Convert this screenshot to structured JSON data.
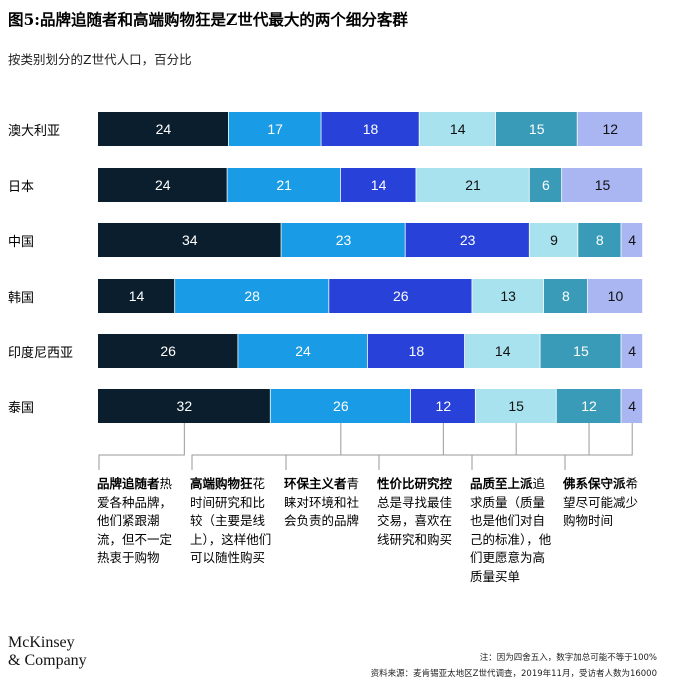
{
  "title": "图5:品牌追随者和高端购物狂是Z世代最大的两个细分客群",
  "subtitle": "按类别划分的Z世代人口，百分比",
  "chart_data": {
    "type": "bar",
    "orientation": "horizontal",
    "stacked": true,
    "categories": [
      "澳大利亚",
      "日本",
      "中国",
      "韩国",
      "印度尼西亚",
      "泰国"
    ],
    "series": [
      {
        "name": "品牌追随者",
        "color": "#0b1e2d",
        "values": [
          24,
          24,
          34,
          14,
          26,
          32
        ]
      },
      {
        "name": "高端购物狂",
        "color": "#1a9be6",
        "values": [
          17,
          21,
          23,
          28,
          24,
          26
        ]
      },
      {
        "name": "环保主义者",
        "color": "#2741d9",
        "values": [
          18,
          14,
          23,
          26,
          18,
          12
        ]
      },
      {
        "name": "性价比研究控",
        "color": "#a8e2ee",
        "values": [
          14,
          21,
          9,
          13,
          14,
          15
        ]
      },
      {
        "name": "品质至上派",
        "color": "#3a9bb8",
        "values": [
          15,
          6,
          8,
          8,
          15,
          12
        ]
      },
      {
        "name": "佛系保守派",
        "color": "#a9b6f2",
        "values": [
          12,
          15,
          4,
          10,
          4,
          4
        ]
      }
    ],
    "legend_placement": "bottom",
    "grid": false
  },
  "descriptions": [
    {
      "term": "品牌追随者",
      "text": "热爱各种品牌，他们紧跟潮流，但不一定热衷于购物"
    },
    {
      "term": "高端购物狂",
      "text": "花时间研究和比较（主要是线上），这样他们可以随性购买"
    },
    {
      "term": "环保主义者",
      "text": "青睐对环境和社会负责的品牌"
    },
    {
      "term": "性价比研究控",
      "text": "总是寻找最佳交易，喜欢在线研究和购买"
    },
    {
      "term": "品质至上派",
      "text": "追求质量（质量也是他们对自己的标准），他们更愿意为高质量买单"
    },
    {
      "term": "佛系保守派",
      "text": "希望尽可能减少购物时间"
    }
  ],
  "logo": {
    "line1": "McKinsey",
    "line2": "& Company"
  },
  "notes": {
    "note1": "注：因为四舍五入，数字加总可能不等于100%",
    "note2": "资料来源：麦肯锡亚太地区Z世代调查，2019年11月，受访者人数为16000"
  }
}
